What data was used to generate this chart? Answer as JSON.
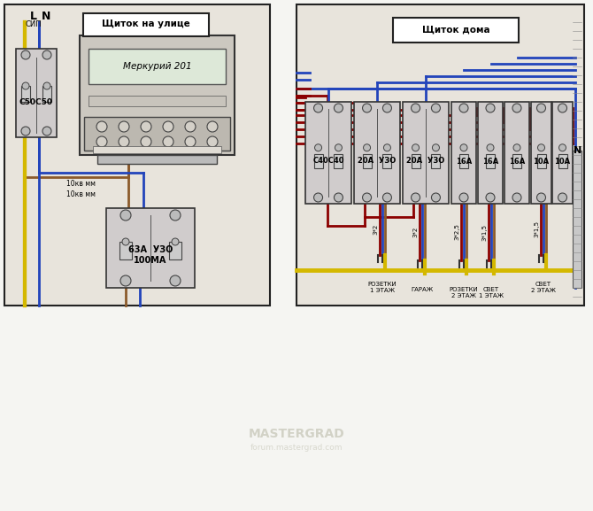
{
  "bg_color": "#f0ede8",
  "panel_bg": "#ede8df",
  "border_color": "#222222",
  "title_left": "Щиток на улице",
  "title_right": "Щиток дома",
  "label_SIP": "СИП",
  "label_breaker_left": "С50С50",
  "label_meter": "Меркурий 201",
  "label_uzo_left": "63А  УЗО\n100МА",
  "label_wire1": "10кв мм",
  "label_wire2": "10кв мм",
  "label_breaker_right": "С40С40",
  "label_20A_uzo1": "20А  УЗО",
  "label_20A_uzo2": "20А  УЗО",
  "label_out1": "РОЗЕТКИ\n1 ЭТАЖ",
  "label_out2": "ГАРАЖ",
  "label_out3": "РОЗЕТКИ\n2 ЭТАЖ",
  "label_out4": "СВЕТ\n1 ЭТАЖ",
  "label_out5": "СВЕТ\n2 ЭТАЖ",
  "label_wire_r1": "3*2",
  "label_wire_r2": "3*2",
  "label_wire_r3": "3*2,5",
  "label_wire_r4": "3*1,5",
  "label_wire_r5": "3*1,5",
  "watermark": "MASTERGRAD",
  "watermark2": "forum.mastergrad.com",
  "color_yellow": "#d4b800",
  "color_blue": "#2244bb",
  "color_brown": "#8b5a2b",
  "color_dark_red": "#8b0000",
  "color_panel": "#e8e4dc",
  "color_device": "#d0cccc",
  "wire_lw": 2.0
}
